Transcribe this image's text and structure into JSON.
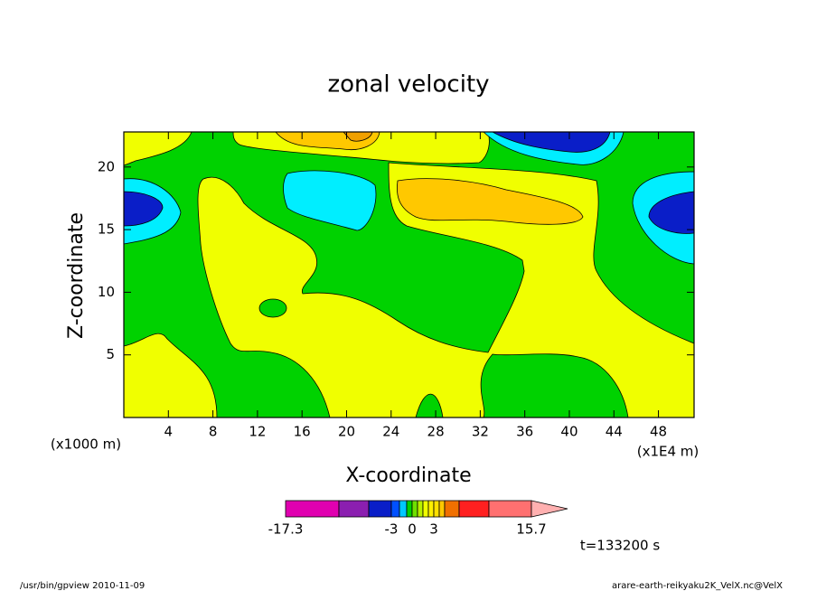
{
  "chart_data": {
    "type": "contour",
    "title": "zonal velocity",
    "x_label": "X-coordinate",
    "y_label": "Z-coordinate",
    "x_unit": "(x1E4 m)",
    "x_unit_left": "(x1000 m)",
    "xlim": [
      0,
      51.2
    ],
    "xticks": [
      4,
      8,
      12,
      16,
      20,
      24,
      28,
      32,
      36,
      40,
      44,
      48
    ],
    "ylim": [
      0,
      22.8
    ],
    "yticks": [
      5,
      10,
      15,
      20
    ],
    "colorbar": {
      "colors": [
        "#e000b0",
        "#8b1fb0",
        "#0a1ec8",
        "#0050ff",
        "#00c8ff",
        "#00d200",
        "#70e000",
        "#b8f000",
        "#f0ff00",
        "#fff000",
        "#ffe000",
        "#ffc800",
        "#f07000",
        "#ff2020",
        "#ff7070"
      ],
      "extend_color": "#ffb0b0",
      "ticks": [
        -17.3,
        -3,
        0,
        3,
        15.7
      ]
    },
    "time_label": "t=133200 s"
  },
  "footer": {
    "left": "/usr/bin/gpview   2010-11-09",
    "right": "arare-earth-reikyaku2K_VelX.nc@VelX"
  }
}
